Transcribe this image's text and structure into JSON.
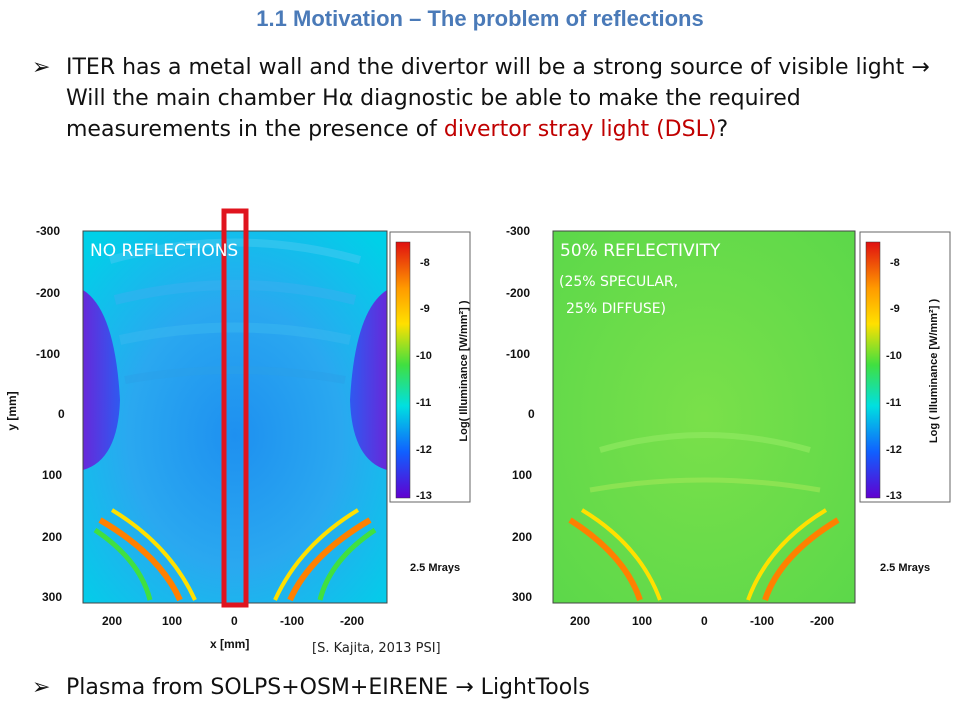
{
  "title": "1.1 Motivation – The problem of reflections",
  "bullet1": {
    "marker": "➢",
    "text_a": "ITER has a metal wall and the divertor will be a strong source of visible light ",
    "arrow": "→",
    "text_b": " Will the main chamber Hα diagnostic be able to make the required measurements in the presence of ",
    "highlight": "divertor stray light (DSL)",
    "text_c": "?"
  },
  "bullet2": {
    "marker": "➢",
    "text_a": "Plasma from SOLPS+OSM+EIRENE ",
    "arrow": "→",
    "text_b": " LightTools"
  },
  "left_panel": {
    "label": "NO REFLECTIONS",
    "mrays": "2.5 Mrays",
    "y_axis_label": "y [mm]",
    "x_axis_label": "x [mm]",
    "y_ticks": [
      "-300",
      "-200",
      "-100",
      "0",
      "100",
      "200",
      "300"
    ],
    "x_ticks": [
      "200",
      "100",
      "0",
      "-100",
      "-200"
    ],
    "colorbar_ticks": [
      "-8",
      "-9",
      "-10",
      "-11",
      "-12",
      "-13"
    ],
    "colorbar_label": "Log( Illuminance [W/mm²] )"
  },
  "right_panel": {
    "label": "50% REFLECTIVITY",
    "sub1": "(25% SPECULAR,",
    "sub2": "25% DIFFUSE)",
    "mrays": "2.5 Mrays",
    "y_ticks": [
      "-300",
      "-200",
      "-100",
      "0",
      "100",
      "200",
      "300"
    ],
    "x_ticks": [
      "200",
      "100",
      "0",
      "-100",
      "-200"
    ],
    "colorbar_ticks": [
      "-8",
      "-9",
      "-10",
      "-11",
      "-12",
      "-13"
    ],
    "colorbar_label": "Log ( Illuminance [W/mm²] )"
  },
  "citation": "[S. Kajita, 2013 PSI]",
  "colors": {
    "title": "#4a7ab8",
    "highlight": "#c00000",
    "box": "#e0141e"
  }
}
